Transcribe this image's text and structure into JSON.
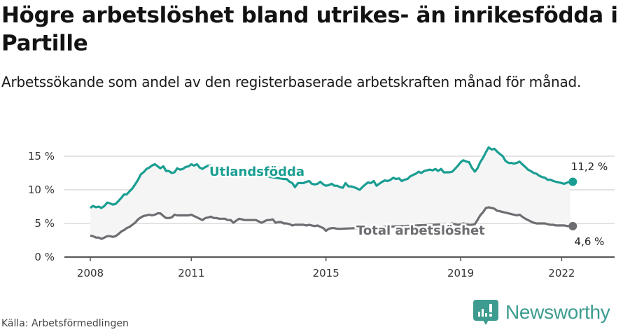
{
  "header": {
    "title": "Högre arbetslöshet bland utrikes- än inrikesfödda i Partille",
    "subtitle": "Arbetssökande som andel av den registerbaserade arbetskraften månad för månad."
  },
  "footer": {
    "source": "Källa: Arbetsförmedlingen",
    "brand": "Newsworthy",
    "brand_icon": "bar-chart-speech-bubble-icon"
  },
  "colors": {
    "utlandsfodda": "#1a9e92",
    "total": "#6e6d72",
    "band_fill": "#f5f5f6",
    "grid": "#e3e3e3",
    "axis": "#555555",
    "brand": "#3d9c8f"
  },
  "chart_data": {
    "type": "line",
    "title": "Högre arbetslöshet bland utrikes- än inrikesfödda i Partille",
    "subtitle": "Arbetssökande som andel av den registerbaserade arbetskraften månad för månad.",
    "xlabel": "",
    "ylabel": "",
    "ylim": [
      0,
      15
    ],
    "xlim": [
      2007.3,
      2023.6
    ],
    "y_ticks": [
      "0 %",
      "5 %",
      "10 %",
      "15 %"
    ],
    "y_tick_values": [
      0,
      5,
      10,
      15
    ],
    "x_ticks": [
      "2008",
      "2011",
      "2015",
      "2019",
      "2022"
    ],
    "x_tick_values": [
      2008,
      2011,
      2015,
      2019,
      2022
    ],
    "grid": true,
    "legend": "inline labels",
    "series": [
      {
        "name": "Utlandsfödda",
        "color": "#1a9e92",
        "end_label": "11,2 %",
        "points": [
          [
            2008.0,
            7.3
          ],
          [
            2008.08,
            7.6
          ],
          [
            2008.17,
            7.4
          ],
          [
            2008.25,
            7.5
          ],
          [
            2008.33,
            7.3
          ],
          [
            2008.42,
            7.6
          ],
          [
            2008.5,
            8.1
          ],
          [
            2008.58,
            8.0
          ],
          [
            2008.67,
            7.8
          ],
          [
            2008.75,
            7.9
          ],
          [
            2008.83,
            8.3
          ],
          [
            2008.92,
            8.8
          ],
          [
            2009.0,
            9.3
          ],
          [
            2009.08,
            9.3
          ],
          [
            2009.17,
            9.8
          ],
          [
            2009.25,
            10.2
          ],
          [
            2009.33,
            10.8
          ],
          [
            2009.42,
            11.5
          ],
          [
            2009.5,
            12.3
          ],
          [
            2009.58,
            12.6
          ],
          [
            2009.67,
            13.1
          ],
          [
            2009.75,
            13.3
          ],
          [
            2009.83,
            13.6
          ],
          [
            2009.92,
            13.8
          ],
          [
            2010.0,
            13.5
          ],
          [
            2010.08,
            13.2
          ],
          [
            2010.17,
            13.5
          ],
          [
            2010.25,
            12.8
          ],
          [
            2010.33,
            12.8
          ],
          [
            2010.42,
            12.5
          ],
          [
            2010.5,
            12.6
          ],
          [
            2010.58,
            13.2
          ],
          [
            2010.67,
            13.0
          ],
          [
            2010.75,
            13.1
          ],
          [
            2010.83,
            13.4
          ],
          [
            2010.92,
            13.5
          ],
          [
            2011.0,
            13.8
          ],
          [
            2011.08,
            13.6
          ],
          [
            2011.17,
            13.8
          ],
          [
            2011.25,
            13.3
          ],
          [
            2011.33,
            13.1
          ],
          [
            2011.42,
            13.4
          ],
          [
            2011.5,
            13.6
          ],
          [
            2011.58,
            13.6
          ],
          [
            2011.67,
            13.2
          ],
          [
            2013.75,
            11.6
          ],
          [
            2013.83,
            11.6
          ],
          [
            2013.92,
            11.2
          ],
          [
            2014.0,
            11.0
          ],
          [
            2014.08,
            10.4
          ],
          [
            2014.17,
            11.0
          ],
          [
            2014.25,
            11.0
          ],
          [
            2014.33,
            11.0
          ],
          [
            2014.42,
            11.2
          ],
          [
            2014.5,
            11.3
          ],
          [
            2014.58,
            10.9
          ],
          [
            2014.67,
            10.8
          ],
          [
            2014.75,
            10.9
          ],
          [
            2014.83,
            11.2
          ],
          [
            2014.92,
            10.8
          ],
          [
            2015.0,
            10.6
          ],
          [
            2015.08,
            10.7
          ],
          [
            2015.17,
            10.9
          ],
          [
            2015.25,
            10.6
          ],
          [
            2015.33,
            10.6
          ],
          [
            2015.42,
            10.4
          ],
          [
            2015.5,
            10.3
          ],
          [
            2015.58,
            11.0
          ],
          [
            2015.67,
            10.5
          ],
          [
            2015.75,
            10.5
          ],
          [
            2015.83,
            10.4
          ],
          [
            2015.92,
            10.2
          ],
          [
            2016.0,
            10.0
          ],
          [
            2016.08,
            10.4
          ],
          [
            2016.17,
            10.8
          ],
          [
            2016.25,
            11.1
          ],
          [
            2016.33,
            11.0
          ],
          [
            2016.42,
            11.3
          ],
          [
            2016.5,
            10.6
          ],
          [
            2016.58,
            10.9
          ],
          [
            2016.67,
            11.2
          ],
          [
            2016.75,
            11.4
          ],
          [
            2016.83,
            11.3
          ],
          [
            2016.92,
            11.5
          ],
          [
            2017.0,
            11.8
          ],
          [
            2017.08,
            11.6
          ],
          [
            2017.17,
            11.7
          ],
          [
            2017.25,
            11.3
          ],
          [
            2017.33,
            11.5
          ],
          [
            2017.42,
            11.6
          ],
          [
            2017.5,
            12.0
          ],
          [
            2017.58,
            12.2
          ],
          [
            2017.67,
            12.4
          ],
          [
            2017.75,
            12.7
          ],
          [
            2017.83,
            12.5
          ],
          [
            2017.92,
            12.8
          ],
          [
            2018.0,
            12.9
          ],
          [
            2018.08,
            13.0
          ],
          [
            2018.17,
            12.9
          ],
          [
            2018.25,
            13.1
          ],
          [
            2018.33,
            12.8
          ],
          [
            2018.42,
            13.1
          ],
          [
            2018.5,
            12.6
          ],
          [
            2018.58,
            12.6
          ],
          [
            2018.67,
            12.6
          ],
          [
            2018.75,
            12.7
          ],
          [
            2018.83,
            13.1
          ],
          [
            2018.92,
            13.6
          ],
          [
            2019.0,
            14.1
          ],
          [
            2019.08,
            14.4
          ],
          [
            2019.17,
            14.2
          ],
          [
            2019.25,
            14.1
          ],
          [
            2019.33,
            13.3
          ],
          [
            2019.42,
            12.7
          ],
          [
            2019.5,
            13.2
          ],
          [
            2019.58,
            14.1
          ],
          [
            2019.67,
            14.8
          ],
          [
            2019.75,
            15.6
          ],
          [
            2019.83,
            16.3
          ],
          [
            2019.92,
            16.0
          ],
          [
            2020.0,
            16.1
          ],
          [
            2020.08,
            15.7
          ],
          [
            2020.17,
            15.3
          ],
          [
            2020.25,
            15.0
          ],
          [
            2020.33,
            14.3
          ],
          [
            2020.42,
            14.0
          ],
          [
            2020.5,
            14.0
          ],
          [
            2020.58,
            13.9
          ],
          [
            2020.67,
            14.0
          ],
          [
            2020.75,
            14.2
          ],
          [
            2020.83,
            13.8
          ],
          [
            2020.92,
            13.4
          ],
          [
            2021.0,
            13.0
          ],
          [
            2021.08,
            12.8
          ],
          [
            2021.17,
            12.5
          ],
          [
            2021.25,
            12.4
          ],
          [
            2021.33,
            12.1
          ],
          [
            2021.42,
            11.9
          ],
          [
            2021.5,
            11.8
          ],
          [
            2021.58,
            11.5
          ],
          [
            2021.67,
            11.5
          ],
          [
            2021.75,
            11.3
          ],
          [
            2021.83,
            11.2
          ],
          [
            2021.92,
            11.1
          ],
          [
            2022.0,
            11.0
          ],
          [
            2022.08,
            10.9
          ],
          [
            2022.17,
            11.1
          ],
          [
            2022.25,
            11.2
          ],
          [
            2022.33,
            11.2
          ]
        ]
      },
      {
        "name": "Total arbetslöshet",
        "color": "#6e6d72",
        "end_label": "4,6 %",
        "points": [
          [
            2008.0,
            3.2
          ],
          [
            2008.08,
            3.1
          ],
          [
            2008.17,
            2.9
          ],
          [
            2008.25,
            2.9
          ],
          [
            2008.33,
            2.7
          ],
          [
            2008.42,
            2.9
          ],
          [
            2008.5,
            3.1
          ],
          [
            2008.58,
            3.1
          ],
          [
            2008.67,
            3.0
          ],
          [
            2008.75,
            3.1
          ],
          [
            2008.83,
            3.4
          ],
          [
            2008.92,
            3.8
          ],
          [
            2009.0,
            4.0
          ],
          [
            2009.08,
            4.3
          ],
          [
            2009.17,
            4.5
          ],
          [
            2009.25,
            4.8
          ],
          [
            2009.33,
            5.1
          ],
          [
            2009.42,
            5.6
          ],
          [
            2009.5,
            5.9
          ],
          [
            2009.58,
            6.1
          ],
          [
            2009.67,
            6.2
          ],
          [
            2009.75,
            6.3
          ],
          [
            2009.83,
            6.2
          ],
          [
            2009.92,
            6.3
          ],
          [
            2010.0,
            6.5
          ],
          [
            2010.08,
            6.5
          ],
          [
            2010.17,
            6.1
          ],
          [
            2010.25,
            5.8
          ],
          [
            2010.33,
            5.8
          ],
          [
            2010.42,
            5.9
          ],
          [
            2010.5,
            6.3
          ],
          [
            2010.58,
            6.2
          ],
          [
            2010.67,
            6.2
          ],
          [
            2010.75,
            6.2
          ],
          [
            2010.83,
            6.2
          ],
          [
            2010.92,
            6.2
          ],
          [
            2011.0,
            6.3
          ],
          [
            2011.08,
            6.1
          ],
          [
            2011.17,
            5.9
          ],
          [
            2011.25,
            5.7
          ],
          [
            2011.33,
            5.5
          ],
          [
            2011.42,
            5.8
          ],
          [
            2011.5,
            5.9
          ],
          [
            2011.58,
            6.0
          ],
          [
            2011.67,
            5.8
          ],
          [
            2011.75,
            5.8
          ],
          [
            2011.83,
            5.7
          ],
          [
            2011.92,
            5.7
          ],
          [
            2012.0,
            5.7
          ],
          [
            2012.08,
            5.5
          ],
          [
            2012.17,
            5.5
          ],
          [
            2012.25,
            5.1
          ],
          [
            2012.33,
            5.4
          ],
          [
            2012.42,
            5.7
          ],
          [
            2012.5,
            5.6
          ],
          [
            2012.58,
            5.5
          ],
          [
            2012.67,
            5.5
          ],
          [
            2012.75,
            5.5
          ],
          [
            2012.83,
            5.5
          ],
          [
            2012.92,
            5.5
          ],
          [
            2013.0,
            5.3
          ],
          [
            2013.08,
            5.1
          ],
          [
            2013.17,
            5.3
          ],
          [
            2013.25,
            5.5
          ],
          [
            2013.33,
            5.5
          ],
          [
            2013.42,
            5.6
          ],
          [
            2013.5,
            5.1
          ],
          [
            2013.58,
            5.2
          ],
          [
            2013.67,
            5.2
          ],
          [
            2013.75,
            5.0
          ],
          [
            2013.83,
            5.0
          ],
          [
            2013.92,
            4.9
          ],
          [
            2014.0,
            4.7
          ],
          [
            2014.08,
            4.8
          ],
          [
            2014.17,
            4.8
          ],
          [
            2014.25,
            4.8
          ],
          [
            2014.33,
            4.8
          ],
          [
            2014.42,
            4.7
          ],
          [
            2014.5,
            4.8
          ],
          [
            2014.58,
            4.7
          ],
          [
            2014.67,
            4.6
          ],
          [
            2014.75,
            4.7
          ],
          [
            2014.83,
            4.5
          ],
          [
            2014.92,
            4.3
          ],
          [
            2015.0,
            3.9
          ],
          [
            2015.08,
            4.2
          ],
          [
            2015.17,
            4.3
          ],
          [
            2015.25,
            4.3
          ],
          [
            2015.33,
            4.2
          ],
          [
            2015.42,
            4.2
          ],
          [
            2018.58,
            4.9
          ],
          [
            2018.67,
            4.9
          ],
          [
            2018.75,
            5.0
          ],
          [
            2018.83,
            4.9
          ],
          [
            2018.92,
            4.8
          ],
          [
            2019.0,
            4.9
          ],
          [
            2019.08,
            5.0
          ],
          [
            2019.17,
            4.9
          ],
          [
            2019.25,
            4.8
          ],
          [
            2019.33,
            4.8
          ],
          [
            2019.42,
            4.9
          ],
          [
            2019.5,
            5.5
          ],
          [
            2019.58,
            6.2
          ],
          [
            2019.67,
            6.7
          ],
          [
            2019.75,
            7.3
          ],
          [
            2019.83,
            7.4
          ],
          [
            2019.92,
            7.3
          ],
          [
            2020.0,
            7.2
          ],
          [
            2020.08,
            6.9
          ],
          [
            2020.17,
            6.8
          ],
          [
            2020.25,
            6.7
          ],
          [
            2020.33,
            6.6
          ],
          [
            2020.42,
            6.5
          ],
          [
            2020.5,
            6.4
          ],
          [
            2020.58,
            6.3
          ],
          [
            2020.67,
            6.2
          ],
          [
            2020.75,
            6.3
          ],
          [
            2020.83,
            6.0
          ],
          [
            2020.92,
            5.7
          ],
          [
            2021.0,
            5.5
          ],
          [
            2021.08,
            5.3
          ],
          [
            2021.17,
            5.1
          ],
          [
            2021.25,
            5.0
          ],
          [
            2021.33,
            5.0
          ],
          [
            2021.42,
            5.0
          ],
          [
            2021.5,
            5.0
          ],
          [
            2021.58,
            4.9
          ],
          [
            2021.67,
            4.8
          ],
          [
            2021.75,
            4.8
          ],
          [
            2021.83,
            4.7
          ],
          [
            2021.92,
            4.7
          ],
          [
            2022.0,
            4.7
          ],
          [
            2022.08,
            4.7
          ],
          [
            2022.17,
            4.6
          ],
          [
            2022.25,
            4.6
          ],
          [
            2022.33,
            4.6
          ]
        ]
      }
    ]
  }
}
